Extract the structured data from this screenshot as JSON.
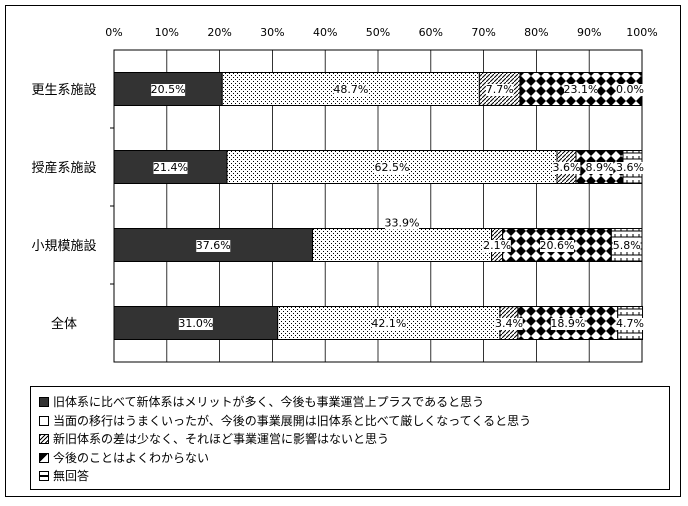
{
  "chart_data": {
    "type": "bar",
    "orientation": "horizontal",
    "stacked": true,
    "percent": true,
    "categories": [
      "更生系施設",
      "授産系施設",
      "小規模施設",
      "全体"
    ],
    "series": [
      {
        "name": "旧体系に比べて新体系はメリットが多く、今後も事業運営上プラスであると思う",
        "values": [
          20.5,
          21.4,
          37.6,
          31.0
        ],
        "labels": [
          "20.5%",
          "21.4%",
          "37.6%",
          "31.0%"
        ]
      },
      {
        "name": "当面の移行はうまくいったが、今後の事業展開は旧体系と比べて厳しくなってくると思う",
        "values": [
          48.7,
          62.5,
          33.9,
          42.1
        ],
        "labels": [
          "48.7%",
          "62.5%",
          "33.9%",
          "42.1%"
        ]
      },
      {
        "name": "新旧体系の差は少なく、それほど事業運営に影響はないと思う",
        "values": [
          7.7,
          3.6,
          2.1,
          3.4
        ],
        "labels": [
          "7.7%",
          "3.6%",
          "2.1%",
          "3.4%"
        ]
      },
      {
        "name": "今後のことはよくわからない",
        "values": [
          23.1,
          8.9,
          20.6,
          18.9
        ],
        "labels": [
          "23.1%",
          "8.9%",
          "20.6%",
          "18.9%"
        ]
      },
      {
        "name": "無回答",
        "values": [
          0.0,
          3.6,
          5.8,
          4.7
        ],
        "labels": [
          "0.0%",
          "3.6%",
          "5.8%",
          "4.7%"
        ]
      }
    ],
    "x_ticks": [
      "0%",
      "10%",
      "20%",
      "30%",
      "40%",
      "50%",
      "60%",
      "70%",
      "80%",
      "90%",
      "100%"
    ],
    "xlim": [
      0,
      100
    ],
    "grid": true,
    "legend_position": "bottom",
    "colors": {
      "series0": "#333333",
      "series1": "#ffffff",
      "border": "#000000"
    }
  }
}
